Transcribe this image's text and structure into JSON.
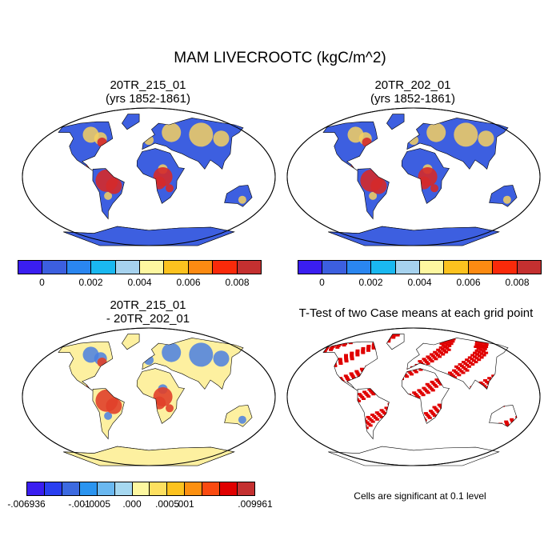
{
  "title": "MAM LIVECROOTC (kgC/m^2)",
  "panels": [
    {
      "title_line1": "20TR_215_01",
      "title_line2": "(yrs 1852-1861)",
      "land_color": "#3d5fe0",
      "hot_color": "#d42a2a",
      "mid_color": "#f5d060"
    },
    {
      "title_line1": "20TR_202_01",
      "title_line2": "(yrs 1852-1861)",
      "land_color": "#3d5fe0",
      "hot_color": "#d42a2a",
      "mid_color": "#f5d060"
    },
    {
      "title_line1": "20TR_215_01",
      "title_line2": "- 20TR_202_01",
      "land_color": "#fdf0a0",
      "hot_color": "#e0402a",
      "mid_color": "#4a7fe0"
    },
    {
      "title_line1": "T-Test of two Case means at each grid point",
      "title_line2": "",
      "land_color": "#ffffff",
      "hot_color": "#e00000",
      "mid_color": "#e00000"
    }
  ],
  "colorbar_abs": {
    "colors": [
      "#3a1ef0",
      "#3c5fdf",
      "#2a86f0",
      "#1ab8f0",
      "#a6d2ee",
      "#fdf7a0",
      "#fcc21f",
      "#fc8a12",
      "#fa2a0a",
      "#c43030"
    ],
    "ticks": [
      {
        "label": "0",
        "index": 1
      },
      {
        "label": "0.002",
        "index": 3
      },
      {
        "label": "0.004",
        "index": 5
      },
      {
        "label": "0.006",
        "index": 7
      },
      {
        "label": "0.008",
        "index": 9
      }
    ]
  },
  "colorbar_diff": {
    "colors": [
      "#3a1ef0",
      "#2a3ff0",
      "#3c6ae0",
      "#2a94f0",
      "#6ab8f0",
      "#a6d8f0",
      "#fdf7a0",
      "#fde060",
      "#fcc21f",
      "#fc9010",
      "#fa4a10",
      "#e00000",
      "#c43030"
    ],
    "ticks": [
      {
        "label": "-.006936",
        "index": 0
      },
      {
        "label": "-.001",
        "index": 3
      },
      {
        "label": "-.0005",
        "index": 4
      },
      {
        "label": ".000",
        "index": 6
      },
      {
        "label": ".0005",
        "index": 8
      },
      {
        "label": ".001",
        "index": 9
      },
      {
        "label": ".009961",
        "index": 13
      }
    ]
  },
  "significance_note": "Cells are significant at 0.1 level"
}
